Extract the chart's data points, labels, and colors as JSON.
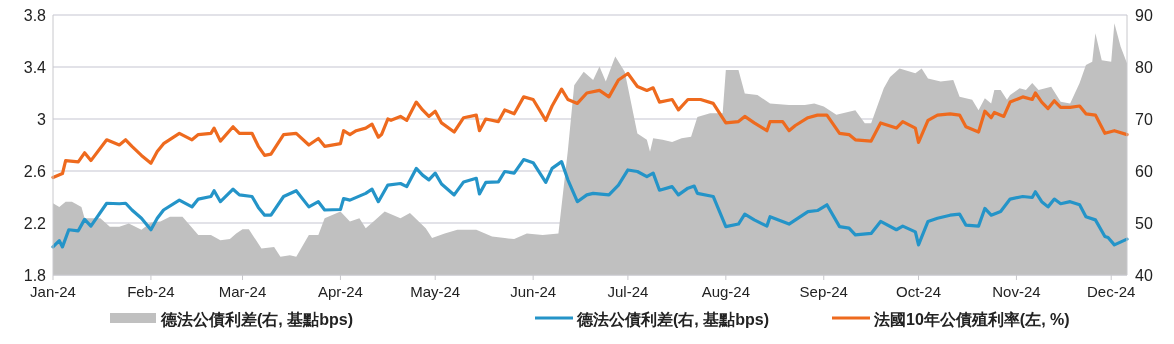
{
  "chart_data": {
    "type": "line",
    "xlim": [
      "2024-01-01",
      "2024-12-06"
    ],
    "xticks": [
      {
        "value": "2024-01-01",
        "label": "Jan-24"
      },
      {
        "value": "2024-02-01",
        "label": "Feb-24"
      },
      {
        "value": "2024-03-01",
        "label": "Mar-24"
      },
      {
        "value": "2024-04-01",
        "label": "Apr-24"
      },
      {
        "value": "2024-05-01",
        "label": "May-24"
      },
      {
        "value": "2024-06-01",
        "label": "Jun-24"
      },
      {
        "value": "2024-07-01",
        "label": "Jul-24"
      },
      {
        "value": "2024-08-01",
        "label": "Aug-24"
      },
      {
        "value": "2024-09-01",
        "label": "Sep-24"
      },
      {
        "value": "2024-10-01",
        "label": "Oct-24"
      },
      {
        "value": "2024-11-01",
        "label": "Nov-24"
      },
      {
        "value": "2024-12-01",
        "label": "Dec-24"
      }
    ],
    "ylim": [
      1.8,
      3.8
    ],
    "yticks": [
      {
        "value": 1.8,
        "label": "1.8"
      },
      {
        "value": 2.2,
        "label": "2.2"
      },
      {
        "value": 2.6,
        "label": "2.6"
      },
      {
        "value": 3,
        "label": "3"
      },
      {
        "value": 3.4,
        "label": "3.4"
      },
      {
        "value": 3.8,
        "label": "3.8"
      }
    ],
    "y2lim": [
      40,
      90
    ],
    "y2ticks": [
      40,
      50,
      60,
      70,
      80,
      90
    ],
    "grid": "y",
    "legend": "bottom",
    "series": [
      {
        "name": "德法公債利差(右, 基點bps)",
        "type": "area",
        "axis": "y2",
        "color": "#c0c0c0",
        "x": [
          "2024-01-01",
          "2024-01-03",
          "2024-01-05",
          "2024-01-07",
          "2024-01-10",
          "2024-01-11",
          "2024-01-16",
          "2024-01-19",
          "2024-01-22",
          "2024-01-25",
          "2024-01-29",
          "2024-02-01",
          "2024-02-04",
          "2024-02-07",
          "2024-02-11",
          "2024-02-16",
          "2024-02-20",
          "2024-02-23",
          "2024-02-26",
          "2024-02-28",
          "2024-03-01",
          "2024-03-03",
          "2024-03-07",
          "2024-03-11",
          "2024-03-13",
          "2024-03-16",
          "2024-03-18",
          "2024-03-22",
          "2024-03-25",
          "2024-03-27",
          "2024-04-01",
          "2024-04-04",
          "2024-04-07",
          "2024-04-09",
          "2024-04-12",
          "2024-04-15",
          "2024-04-20",
          "2024-04-23",
          "2024-04-28",
          "2024-04-30",
          "2024-05-04",
          "2024-05-08",
          "2024-05-14",
          "2024-05-19",
          "2024-05-23",
          "2024-05-26",
          "2024-05-30",
          "2024-06-04",
          "2024-06-09",
          "2024-06-12",
          "2024-06-14",
          "2024-06-17",
          "2024-06-20",
          "2024-06-22",
          "2024-06-24",
          "2024-06-27",
          "2024-06-30",
          "2024-07-04",
          "2024-07-07",
          "2024-07-08",
          "2024-07-09",
          "2024-07-12",
          "2024-07-15",
          "2024-07-18",
          "2024-07-21",
          "2024-07-23",
          "2024-07-27",
          "2024-07-31",
          "2024-08-01",
          "2024-08-05",
          "2024-08-07",
          "2024-08-11",
          "2024-08-15",
          "2024-08-21",
          "2024-08-26",
          "2024-08-29",
          "2024-09-01",
          "2024-09-05",
          "2024-09-11",
          "2024-09-14",
          "2024-09-16",
          "2024-09-20",
          "2024-09-22",
          "2024-09-25",
          "2024-09-30",
          "2024-10-02",
          "2024-10-04",
          "2024-10-08",
          "2024-10-12",
          "2024-10-14",
          "2024-10-18",
          "2024-10-20",
          "2024-10-22",
          "2024-10-24",
          "2024-10-25",
          "2024-10-27",
          "2024-10-29",
          "2024-10-30",
          "2024-11-02",
          "2024-11-04",
          "2024-11-06",
          "2024-11-08",
          "2024-11-12",
          "2024-11-15",
          "2024-11-18",
          "2024-11-21",
          "2024-11-23",
          "2024-11-25",
          "2024-11-26",
          "2024-11-28",
          "2024-12-01",
          "2024-12-02",
          "2024-12-04",
          "2024-12-06"
        ],
        "values": [
          53.8,
          53.1,
          54.1,
          54.1,
          53.1,
          50.9,
          50.9,
          49.3,
          49.3,
          49.9,
          48.7,
          50.1,
          50.3,
          51.2,
          51.2,
          47.7,
          47.7,
          46.7,
          46.9,
          48,
          48.8,
          48.8,
          45.1,
          45.4,
          43.5,
          43.8,
          43.5,
          47.7,
          47.7,
          50.9,
          52.2,
          50.3,
          50.9,
          49,
          50.6,
          52.2,
          50.9,
          51.9,
          49,
          47.1,
          48,
          48.7,
          48.7,
          47.4,
          47.1,
          46.9,
          48,
          47.7,
          48,
          64,
          76.5,
          79.1,
          77.5,
          80.1,
          77.2,
          82,
          79.1,
          67.2,
          66,
          63.7,
          66.3,
          66,
          65.6,
          66.3,
          66.6,
          70.4,
          71.1,
          71.1,
          79.4,
          79.4,
          74.9,
          74.6,
          73,
          72.7,
          72.7,
          73,
          72.4,
          70.8,
          71.7,
          69.2,
          69.2,
          75.9,
          78.1,
          79.7,
          78.8,
          79.7,
          77.8,
          77.2,
          77.5,
          74.3,
          73.7,
          71.7,
          74,
          73,
          75.6,
          75.6,
          73.7,
          74.6,
          75.9,
          75.6,
          76.9,
          75.6,
          76.2,
          73.3,
          73,
          76.9,
          80.4,
          81,
          86.5,
          81.3,
          81,
          88.4,
          83.9,
          80.7
        ]
      },
      {
        "name": "德法公債利差(右, 基點bps)",
        "type": "line",
        "axis": "y2",
        "color": "#2494c8",
        "x": [
          "2024-01-01",
          "2024-01-03",
          "2024-01-04",
          "2024-01-06",
          "2024-01-09",
          "2024-01-11",
          "2024-01-13",
          "2024-01-18",
          "2024-01-22",
          "2024-01-24",
          "2024-01-26",
          "2024-01-29",
          "2024-02-01",
          "2024-02-03",
          "2024-02-05",
          "2024-02-10",
          "2024-02-14",
          "2024-02-16",
          "2024-02-20",
          "2024-02-21",
          "2024-02-23",
          "2024-02-27",
          "2024-02-29",
          "2024-03-04",
          "2024-03-06",
          "2024-03-08",
          "2024-03-10",
          "2024-03-14",
          "2024-03-18",
          "2024-03-22",
          "2024-03-25",
          "2024-03-27",
          "2024-04-01",
          "2024-04-02",
          "2024-04-04",
          "2024-04-09",
          "2024-04-11",
          "2024-04-13",
          "2024-04-16",
          "2024-04-20",
          "2024-04-22",
          "2024-04-25",
          "2024-04-27",
          "2024-04-29",
          "2024-05-01",
          "2024-05-03",
          "2024-05-07",
          "2024-05-10",
          "2024-05-14",
          "2024-05-15",
          "2024-05-17",
          "2024-05-21",
          "2024-05-23",
          "2024-05-26",
          "2024-05-29",
          "2024-06-01",
          "2024-06-05",
          "2024-06-07",
          "2024-06-10",
          "2024-06-12",
          "2024-06-15",
          "2024-06-18",
          "2024-06-20",
          "2024-06-25",
          "2024-06-28",
          "2024-07-01",
          "2024-07-04",
          "2024-07-07",
          "2024-07-09",
          "2024-07-11",
          "2024-07-15",
          "2024-07-17",
          "2024-07-20",
          "2024-07-22",
          "2024-07-23",
          "2024-07-28",
          "2024-08-01",
          "2024-08-05",
          "2024-08-07",
          "2024-08-10",
          "2024-08-14",
          "2024-08-15",
          "2024-08-21",
          "2024-08-27",
          "2024-08-30",
          "2024-09-02",
          "2024-09-06",
          "2024-09-09",
          "2024-09-11",
          "2024-09-16",
          "2024-09-19",
          "2024-09-24",
          "2024-09-26",
          "2024-09-30",
          "2024-10-01",
          "2024-10-04",
          "2024-10-07",
          "2024-10-11",
          "2024-10-14",
          "2024-10-16",
          "2024-10-20",
          "2024-10-22",
          "2024-10-24",
          "2024-10-27",
          "2024-10-30",
          "2024-11-03",
          "2024-11-06",
          "2024-11-07",
          "2024-11-09",
          "2024-11-11",
          "2024-11-13",
          "2024-11-15",
          "2024-11-18",
          "2024-11-21",
          "2024-11-23",
          "2024-11-26",
          "2024-11-29",
          "2024-11-30",
          "2024-12-02",
          "2024-12-06"
        ],
        "values": [
          45.4,
          46.6,
          45.4,
          48.7,
          48.5,
          50.7,
          49.4,
          53.8,
          53.7,
          53.8,
          52.5,
          50.9,
          48.7,
          50.9,
          52.5,
          54.4,
          53.1,
          54.6,
          55.1,
          56.2,
          54.1,
          56.5,
          55.4,
          55.1,
          53,
          51.5,
          51.5,
          55.1,
          56.2,
          53.1,
          54.1,
          52.5,
          52.6,
          54.7,
          54.4,
          55.7,
          56.5,
          54.1,
          57.3,
          57.6,
          57,
          60.5,
          59.2,
          58.3,
          59.6,
          57.5,
          55.4,
          57.9,
          58.6,
          55.6,
          57.8,
          57.9,
          59.9,
          59.6,
          62.2,
          61.6,
          57.8,
          60.5,
          61.8,
          58.3,
          54.1,
          55.4,
          55.7,
          55.4,
          57.3,
          60.2,
          59.9,
          58.9,
          59.6,
          56.3,
          57,
          55.4,
          56.7,
          57.1,
          55.7,
          55.1,
          49.3,
          49.8,
          51.7,
          50.6,
          49.4,
          51.2,
          49.8,
          52.2,
          52.4,
          53.5,
          49.3,
          49,
          47.7,
          48,
          50.3,
          48.7,
          49.4,
          48.3,
          45.8,
          50.3,
          50.9,
          51.5,
          51.7,
          49.6,
          49.4,
          52.8,
          51.5,
          52.2,
          54.6,
          55.1,
          54.9,
          56,
          54.1,
          53.1,
          54.6,
          53.7,
          54.1,
          53.5,
          51.2,
          50.6,
          47.4,
          47.2,
          45.8,
          46.9
        ]
      },
      {
        "name": "法國10年公債殖利率(左, %)",
        "color": "#ee6a1e",
        "x": [
          "2024-01-01",
          "2024-01-04",
          "2024-01-05",
          "2024-01-09",
          "2024-01-11",
          "2024-01-13",
          "2024-01-18",
          "2024-01-22",
          "2024-01-24",
          "2024-01-26",
          "2024-01-29",
          "2024-02-01",
          "2024-02-03",
          "2024-02-05",
          "2024-02-10",
          "2024-02-14",
          "2024-02-16",
          "2024-02-20",
          "2024-02-21",
          "2024-02-23",
          "2024-02-27",
          "2024-02-29",
          "2024-03-04",
          "2024-03-06",
          "2024-03-08",
          "2024-03-10",
          "2024-03-14",
          "2024-03-18",
          "2024-03-22",
          "2024-03-25",
          "2024-03-27",
          "2024-04-01",
          "2024-04-02",
          "2024-04-04",
          "2024-04-06",
          "2024-04-09",
          "2024-04-11",
          "2024-04-13",
          "2024-04-14",
          "2024-04-16",
          "2024-04-17",
          "2024-04-20",
          "2024-04-22",
          "2024-04-25",
          "2024-04-27",
          "2024-04-29",
          "2024-05-01",
          "2024-05-03",
          "2024-05-07",
          "2024-05-10",
          "2024-05-14",
          "2024-05-15",
          "2024-05-17",
          "2024-05-21",
          "2024-05-23",
          "2024-05-26",
          "2024-05-29",
          "2024-06-01",
          "2024-06-05",
          "2024-06-07",
          "2024-06-10",
          "2024-06-12",
          "2024-06-15",
          "2024-06-18",
          "2024-06-22",
          "2024-06-25",
          "2024-06-28",
          "2024-07-01",
          "2024-07-04",
          "2024-07-07",
          "2024-07-09",
          "2024-07-11",
          "2024-07-15",
          "2024-07-17",
          "2024-07-20",
          "2024-07-24",
          "2024-07-28",
          "2024-08-01",
          "2024-08-05",
          "2024-08-07",
          "2024-08-10",
          "2024-08-14",
          "2024-08-15",
          "2024-08-19",
          "2024-08-21",
          "2024-08-23",
          "2024-08-27",
          "2024-08-30",
          "2024-09-02",
          "2024-09-06",
          "2024-09-09",
          "2024-09-11",
          "2024-09-16",
          "2024-09-19",
          "2024-09-24",
          "2024-09-26",
          "2024-09-30",
          "2024-10-01",
          "2024-10-04",
          "2024-10-07",
          "2024-10-11",
          "2024-10-14",
          "2024-10-16",
          "2024-10-20",
          "2024-10-22",
          "2024-10-24",
          "2024-10-25",
          "2024-10-28",
          "2024-10-30",
          "2024-11-03",
          "2024-11-06",
          "2024-11-07",
          "2024-11-09",
          "2024-11-11",
          "2024-11-13",
          "2024-11-15",
          "2024-11-18",
          "2024-11-21",
          "2024-11-23",
          "2024-11-26",
          "2024-11-29",
          "2024-12-02",
          "2024-12-06"
        ],
        "values": [
          2.55,
          2.58,
          2.68,
          2.67,
          2.74,
          2.68,
          2.84,
          2.8,
          2.84,
          2.79,
          2.72,
          2.66,
          2.75,
          2.81,
          2.89,
          2.84,
          2.88,
          2.89,
          2.93,
          2.83,
          2.94,
          2.89,
          2.89,
          2.79,
          2.72,
          2.73,
          2.88,
          2.89,
          2.8,
          2.85,
          2.79,
          2.81,
          2.91,
          2.88,
          2.91,
          2.93,
          2.96,
          2.86,
          2.88,
          3,
          2.99,
          3.02,
          2.99,
          3.13,
          3.07,
          3.02,
          3.06,
          2.97,
          2.9,
          3.01,
          3.03,
          2.91,
          3,
          2.98,
          3.07,
          3.04,
          3.17,
          3.15,
          2.99,
          3.1,
          3.23,
          3.15,
          3.12,
          3.2,
          3.22,
          3.17,
          3.3,
          3.35,
          3.25,
          3.22,
          3.24,
          3.13,
          3.15,
          3.07,
          3.15,
          3.15,
          3.12,
          2.97,
          2.98,
          3.02,
          2.97,
          2.91,
          2.98,
          2.98,
          2.91,
          2.95,
          3.01,
          3.03,
          3.03,
          2.89,
          2.88,
          2.84,
          2.83,
          2.97,
          2.93,
          2.98,
          2.93,
          2.82,
          2.99,
          3.03,
          3.04,
          3.03,
          2.94,
          2.9,
          3.06,
          3.01,
          3.05,
          3.02,
          3.13,
          3.17,
          3.15,
          3.2,
          3.13,
          3.08,
          3.14,
          3.09,
          3.09,
          3.1,
          3.04,
          3.03,
          2.89,
          2.91,
          2.88
        ]
      }
    ]
  }
}
